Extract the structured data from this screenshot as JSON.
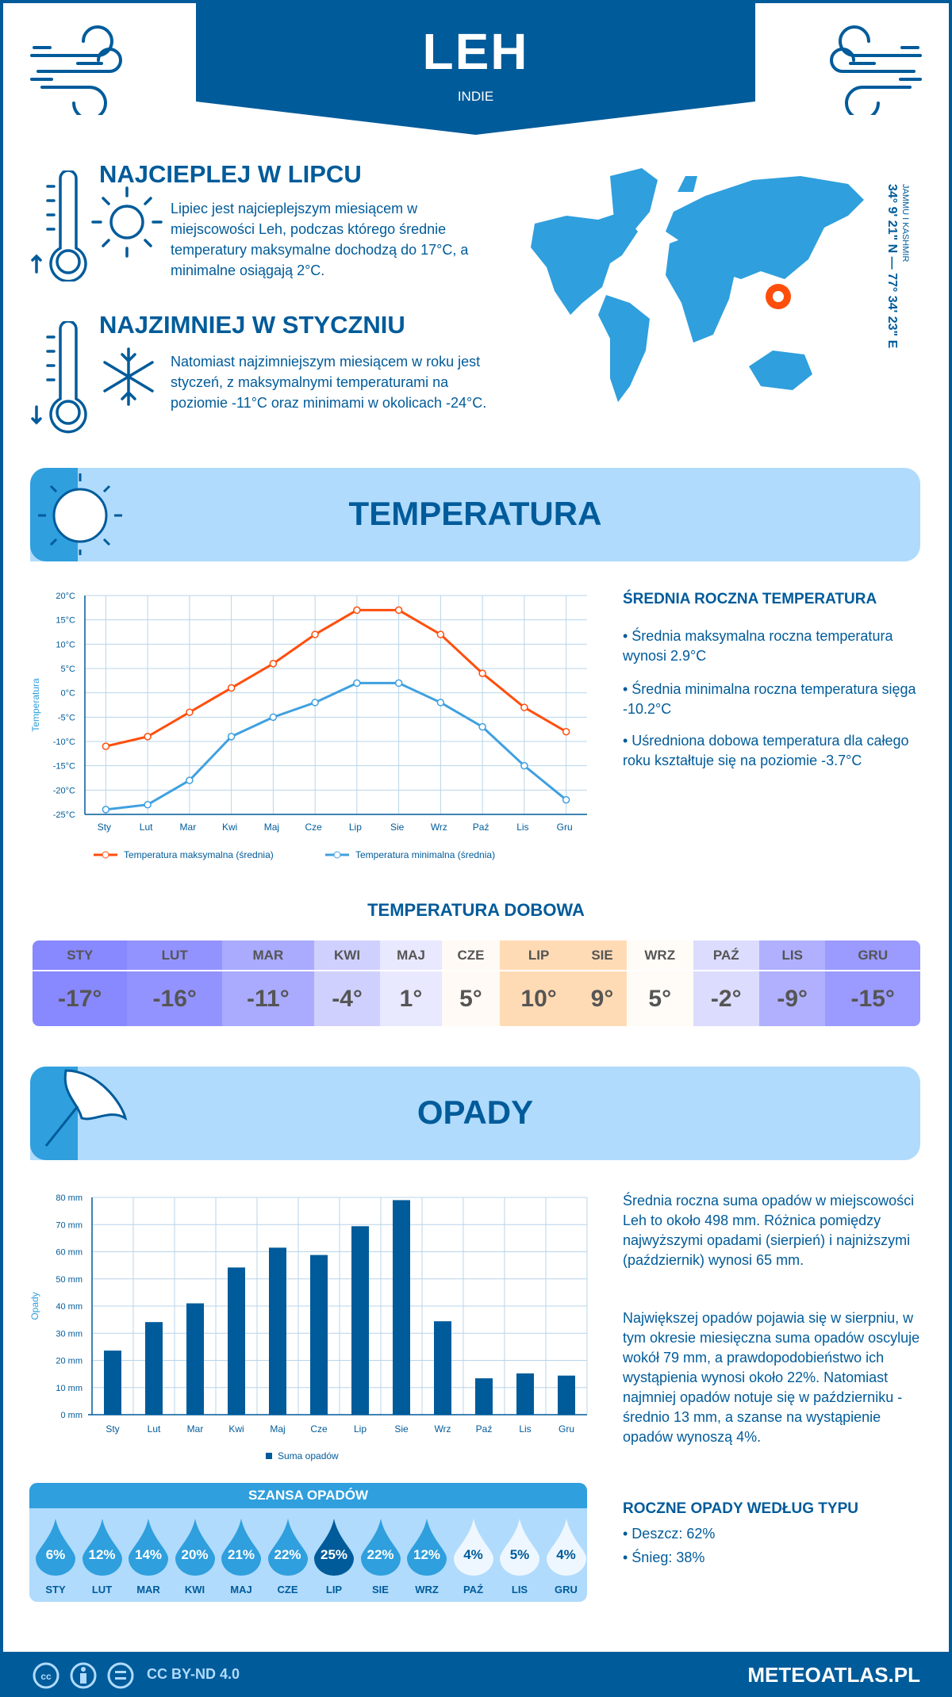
{
  "header": {
    "city": "LEH",
    "country": "INDIE"
  },
  "warmest": {
    "title": "NAJCIEPLEJ W LIPCU",
    "text": "Lipiec jest najcieplejszym miesiącem w miejscowości Leh, podczas którego średnie temperatury maksymalne dochodzą do 17°C, a minimalne osiągają 2°C."
  },
  "coldest": {
    "title": "NAJZIMNIEJ W STYCZNIU",
    "text": "Natomiast najzimniejszym miesiącem w roku jest styczeń, z maksymalnymi temperaturami na poziomie -11°C oraz minimami w okolicach -24°C."
  },
  "map": {
    "coords": "34° 9' 21\" N — 77° 34' 23\" E",
    "region": "JAMMU I KASHMIR"
  },
  "temp_section": {
    "title": "TEMPERATURA"
  },
  "temp_summary": {
    "title": "ŚREDNIA ROCZNA TEMPERATURA",
    "items": [
      "• Średnia maksymalna roczna temperatura wynosi 2.9°C",
      "• Średnia minimalna roczna temperatura sięga -10.2°C",
      "• Uśredniona dobowa temperatura dla całego roku kształtuje się na poziomie -3.7°C"
    ]
  },
  "daily": {
    "title": "TEMPERATURA DOBOWA",
    "months": [
      "STY",
      "LUT",
      "MAR",
      "KWI",
      "MAJ",
      "CZE",
      "LIP",
      "SIE",
      "WRZ",
      "PAŹ",
      "LIS",
      "GRU"
    ],
    "values": [
      "-17°",
      "-16°",
      "-11°",
      "-4°",
      "1°",
      "5°",
      "10°",
      "9°",
      "5°",
      "-2°",
      "-9°",
      "-15°"
    ],
    "colors": [
      "#8888ff",
      "#9393ff",
      "#aaaaff",
      "#d0d0ff",
      "#e8e8ff",
      "#fffaf5",
      "#ffdbb5",
      "#ffdbb5",
      "#fffcf8",
      "#dcdcff",
      "#b0b0ff",
      "#9a9aff"
    ]
  },
  "precip_section": {
    "title": "OPADY"
  },
  "precip_summary": {
    "p1": "Średnia roczna suma opadów w miejscowości Leh to około 498 mm. Różnica pomiędzy najwyższymi opadami (sierpień) i najniższymi (październik) wynosi 65 mm.",
    "p2": "Największej opadów pojawia się w sierpniu, w tym okresie miesięczna suma opadów oscyluje wokół 79 mm, a prawdopodobieństwo ich wystąpienia wynosi około 22%. Natomiast najmniej opadów notuje się w październiku - średnio 13 mm, a szanse na wystąpienie opadów wynoszą 4%."
  },
  "chance": {
    "title": "SZANSA OPADÓW",
    "months": [
      "STY",
      "LUT",
      "MAR",
      "KWI",
      "MAJ",
      "CZE",
      "LIP",
      "SIE",
      "WRZ",
      "PAŹ",
      "LIS",
      "GRU"
    ],
    "values": [
      "6%",
      "12%",
      "14%",
      "20%",
      "21%",
      "22%",
      "25%",
      "22%",
      "12%",
      "4%",
      "5%",
      "4%"
    ]
  },
  "types": {
    "title": "ROCZNE OPADY WEDŁUG TYPU",
    "rain": "• Deszcz: 62%",
    "snow": "• Śnieg: 38%"
  },
  "footer": {
    "license": "CC BY-ND 4.0",
    "site": "METEOATLAS.PL"
  },
  "colors": {
    "dark": "#005b9a",
    "mid": "#2f9fdd",
    "light": "#b0dbfc",
    "orange": "#ff4e0c"
  },
  "chart_data": [
    {
      "type": "line",
      "title": "",
      "ylabel": "Temperatura",
      "ylim": [
        -25,
        20
      ],
      "yticks": [
        "20°C",
        "15°C",
        "10°C",
        "5°C",
        "0°C",
        "-5°C",
        "-10°C",
        "-15°C",
        "-20°C",
        "-25°C"
      ],
      "categories": [
        "Sty",
        "Lut",
        "Mar",
        "Kwi",
        "Maj",
        "Cze",
        "Lip",
        "Sie",
        "Wrz",
        "Paź",
        "Lis",
        "Gru"
      ],
      "series": [
        {
          "name": "Temperatura maksymalna (średnia)",
          "color": "#ff4e0c",
          "values": [
            -11,
            -9,
            -4,
            1,
            6,
            12,
            17,
            17,
            12,
            4,
            -3,
            -8
          ]
        },
        {
          "name": "Temperatura minimalna (średnia)",
          "color": "#3fa0e0",
          "values": [
            -24,
            -23,
            -18,
            -9,
            -5,
            -2,
            2,
            2,
            -2,
            -7,
            -15,
            -22
          ]
        }
      ]
    },
    {
      "type": "bar",
      "title": "",
      "ylabel": "Opady",
      "ylim": [
        0,
        80
      ],
      "yticks": [
        "80 mm",
        "70 mm",
        "60 mm",
        "50 mm",
        "40 mm",
        "30 mm",
        "20 mm",
        "10 mm",
        "0 mm"
      ],
      "categories": [
        "Sty",
        "Lut",
        "Mar",
        "Kwi",
        "Maj",
        "Cze",
        "Lip",
        "Sie",
        "Wrz",
        "Paź",
        "Lis",
        "Gru"
      ],
      "series": [
        {
          "name": "Suma opadów",
          "color": "#005b9a",
          "values": [
            23.6,
            34.1,
            41,
            54.2,
            61.5,
            58.8,
            69.4,
            79,
            34.4,
            13.4,
            15.2,
            14.4
          ]
        }
      ]
    }
  ]
}
